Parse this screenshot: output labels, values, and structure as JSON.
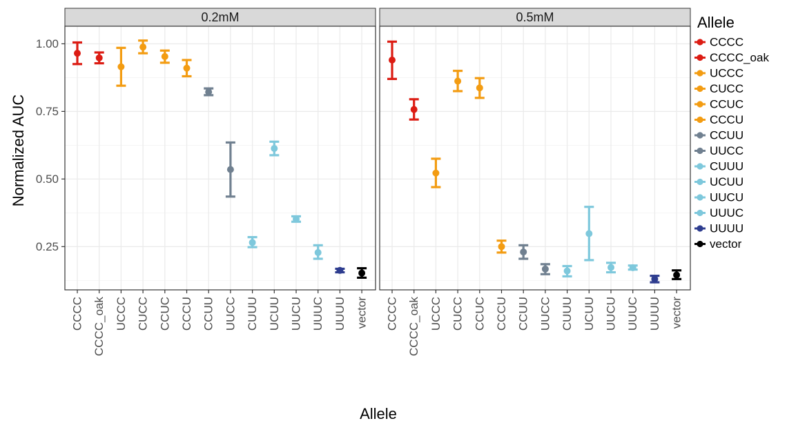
{
  "chart_data": {
    "type": "scatter",
    "xlabel": "Allele",
    "ylabel": "Normalized AUC",
    "ylim": [
      0.09,
      1.065
    ],
    "yticks": [
      0.25,
      0.5,
      0.75,
      1.0
    ],
    "ytick_labels": [
      "0.25",
      "0.50",
      "0.75",
      "1.00"
    ],
    "grid": true,
    "legend": {
      "title": "Allele",
      "placement": "right",
      "entries": [
        "CCCC",
        "CCCC_oak",
        "UCCC",
        "CUCC",
        "CCUC",
        "CCCU",
        "CCUU",
        "UUCC",
        "CUUU",
        "UCUU",
        "UUCU",
        "UUUC",
        "UUUU",
        "vector"
      ]
    },
    "colors": {
      "CCCC": "#dc1c13",
      "CCCC_oak": "#dc1c13",
      "UCCC": "#f39c12",
      "CUCC": "#f39c12",
      "CCUC": "#f39c12",
      "CCCU": "#f39c12",
      "CCUU": "#708090",
      "UUCC": "#708090",
      "CUUU": "#7ec8dc",
      "UCUU": "#7ec8dc",
      "UUCU": "#7ec8dc",
      "UUUC": "#7ec8dc",
      "UUUU": "#2e3d8f",
      "vector": "#000000"
    },
    "panels": [
      {
        "label": "0.2mM",
        "categories": [
          "CCCC",
          "CCCC_oak",
          "UCCC",
          "CUCC",
          "CCUC",
          "CCCU",
          "CCUU",
          "UUCC",
          "CUUU",
          "UCUU",
          "UUCU",
          "UUUC",
          "UUUU",
          "vector"
        ],
        "values": [
          0.965,
          0.948,
          0.915,
          0.988,
          0.953,
          0.91,
          0.822,
          0.535,
          0.265,
          0.613,
          0.352,
          0.228,
          0.162,
          0.152
        ],
        "lower": [
          0.925,
          0.928,
          0.845,
          0.965,
          0.93,
          0.88,
          0.81,
          0.435,
          0.248,
          0.588,
          0.342,
          0.205,
          0.155,
          0.135
        ],
        "upper": [
          1.005,
          0.968,
          0.985,
          1.012,
          0.975,
          0.94,
          0.835,
          0.635,
          0.285,
          0.638,
          0.362,
          0.255,
          0.168,
          0.17
        ]
      },
      {
        "label": "0.5mM",
        "categories": [
          "CCCC",
          "CCCC_oak",
          "UCCC",
          "CUCC",
          "CCUC",
          "CCCU",
          "CCUU",
          "UUCC",
          "CUUU",
          "UCUU",
          "UUCU",
          "UUUC",
          "UUUU",
          "vector"
        ],
        "values": [
          0.94,
          0.757,
          0.522,
          0.862,
          0.837,
          0.25,
          0.23,
          0.167,
          0.16,
          0.298,
          0.173,
          0.172,
          0.13,
          0.145
        ],
        "lower": [
          0.87,
          0.72,
          0.47,
          0.825,
          0.8,
          0.228,
          0.205,
          0.148,
          0.14,
          0.2,
          0.155,
          0.165,
          0.118,
          0.13
        ],
        "upper": [
          1.008,
          0.795,
          0.575,
          0.9,
          0.873,
          0.272,
          0.255,
          0.185,
          0.178,
          0.397,
          0.19,
          0.18,
          0.142,
          0.162
        ]
      }
    ]
  }
}
